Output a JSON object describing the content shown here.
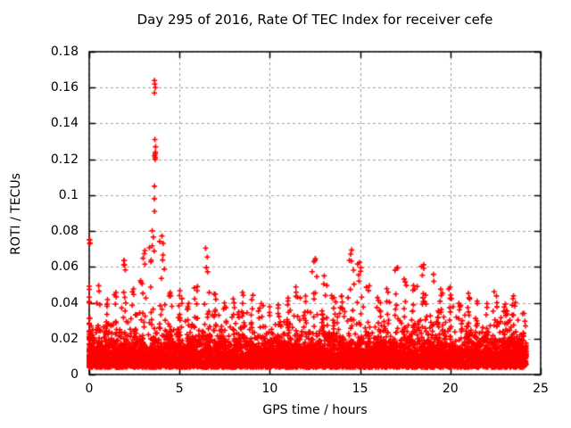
{
  "chart_data": {
    "type": "scatter",
    "title": "Day 295 of 2016, Rate Of TEC Index for receiver cefe",
    "xlabel": "GPS time / hours",
    "ylabel": "ROTI / TECUs",
    "xlim": [
      0,
      25
    ],
    "ylim": [
      0,
      0.18
    ],
    "xticks": [
      0,
      5,
      10,
      15,
      20,
      25
    ],
    "xtick_labels": [
      "0",
      "5",
      "10",
      "15",
      "20",
      "25"
    ],
    "yticks": [
      0,
      0.02,
      0.04,
      0.06,
      0.08,
      0.1,
      0.12,
      0.14,
      0.16,
      0.18
    ],
    "ytick_labels": [
      "0",
      "0.02",
      "0.04",
      "0.06",
      "0.08",
      "0.1",
      "0.12",
      "0.14",
      "0.16",
      "0.18"
    ],
    "grid": true,
    "legend": "none",
    "marker": "plus",
    "marker_color": "#ff0000",
    "grid_color": "#a0a0a0",
    "frame_color": "#000000",
    "data_hour_range": [
      0,
      24.2
    ],
    "baseline_band": [
      0.004,
      0.03
    ],
    "envelope_max": {
      "bin_hours": 0.5,
      "start_hour": 0,
      "values": [
        0.077,
        0.05,
        0.042,
        0.046,
        0.064,
        0.048,
        0.071,
        0.082,
        0.078,
        0.046,
        0.047,
        0.04,
        0.05,
        0.072,
        0.046,
        0.04,
        0.043,
        0.047,
        0.045,
        0.04,
        0.038,
        0.04,
        0.043,
        0.05,
        0.045,
        0.066,
        0.056,
        0.045,
        0.044,
        0.07,
        0.064,
        0.05,
        0.043,
        0.048,
        0.06,
        0.054,
        0.05,
        0.062,
        0.056,
        0.048,
        0.05,
        0.04,
        0.046,
        0.042,
        0.04,
        0.047,
        0.04,
        0.045,
        0.035
      ]
    },
    "spike_cluster": {
      "hour": 3.65,
      "values": [
        0.164,
        0.162,
        0.16,
        0.157,
        0.131,
        0.127,
        0.124,
        0.123,
        0.122,
        0.121,
        0.12,
        0.105,
        0.098,
        0.091
      ]
    },
    "generation": {
      "seed": 2016295,
      "base_points_per_bin": 110,
      "burst_points_per_bin": 20,
      "baseline_sigma": 0.0075,
      "min_value": 0.004,
      "burst_x_sigma_hours": 0.09,
      "burst_power": 2.4
    }
  }
}
